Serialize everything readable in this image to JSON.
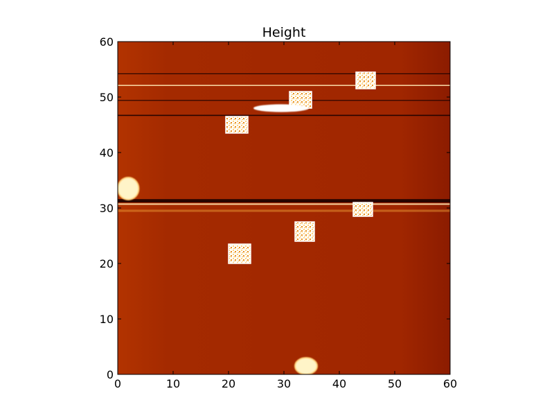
{
  "chart_data": {
    "type": "heatmap",
    "title": "Height",
    "xlabel": "",
    "ylabel": "",
    "xlim": [
      0,
      60
    ],
    "ylim": [
      0,
      60
    ],
    "xticks": [
      0,
      10,
      20,
      30,
      40,
      50,
      60
    ],
    "yticks": [
      0,
      10,
      20,
      30,
      40,
      50,
      60
    ],
    "grid": false,
    "colormap": "afmhot",
    "colors": {
      "background": "#a42a00",
      "dark_line": "#1a0000",
      "bright": "#ffffff",
      "mid_bright": "#f2a53a"
    },
    "features": [
      {
        "kind": "square",
        "x": [
          43,
          46.5
        ],
        "y": [
          51.5,
          54.5
        ]
      },
      {
        "kind": "square",
        "x": [
          31,
          35
        ],
        "y": [
          48,
          51
        ]
      },
      {
        "kind": "streak",
        "x": [
          24.5,
          34.5
        ],
        "y": [
          47.3,
          48.7
        ]
      },
      {
        "kind": "square",
        "x": [
          19.5,
          23.5
        ],
        "y": [
          43.5,
          46.5
        ]
      },
      {
        "kind": "blob",
        "x": [
          0,
          3.8
        ],
        "y": [
          31.5,
          35.5
        ]
      },
      {
        "kind": "square",
        "x": [
          42.5,
          46
        ],
        "y": [
          28.5,
          31
        ]
      },
      {
        "kind": "square",
        "x": [
          32,
          35.5
        ],
        "y": [
          24,
          27.5
        ]
      },
      {
        "kind": "square",
        "x": [
          20,
          24
        ],
        "y": [
          20,
          23.5
        ]
      },
      {
        "kind": "blob",
        "x": [
          32,
          36
        ],
        "y": [
          0,
          3
        ]
      }
    ],
    "scan_lines": [
      {
        "y": 31.3,
        "kind": "dark",
        "width": 0.6
      },
      {
        "y": 30.7,
        "kind": "bright",
        "width": 0.25
      },
      {
        "y": 52.1,
        "kind": "bright",
        "width": 0.2
      },
      {
        "y": 54.2,
        "kind": "dark",
        "width": 0.15
      },
      {
        "y": 46.7,
        "kind": "dark",
        "width": 0.2
      },
      {
        "y": 49.4,
        "kind": "dark",
        "width": 0.15
      },
      {
        "y": 29.5,
        "kind": "mid",
        "width": 0.4
      }
    ]
  }
}
